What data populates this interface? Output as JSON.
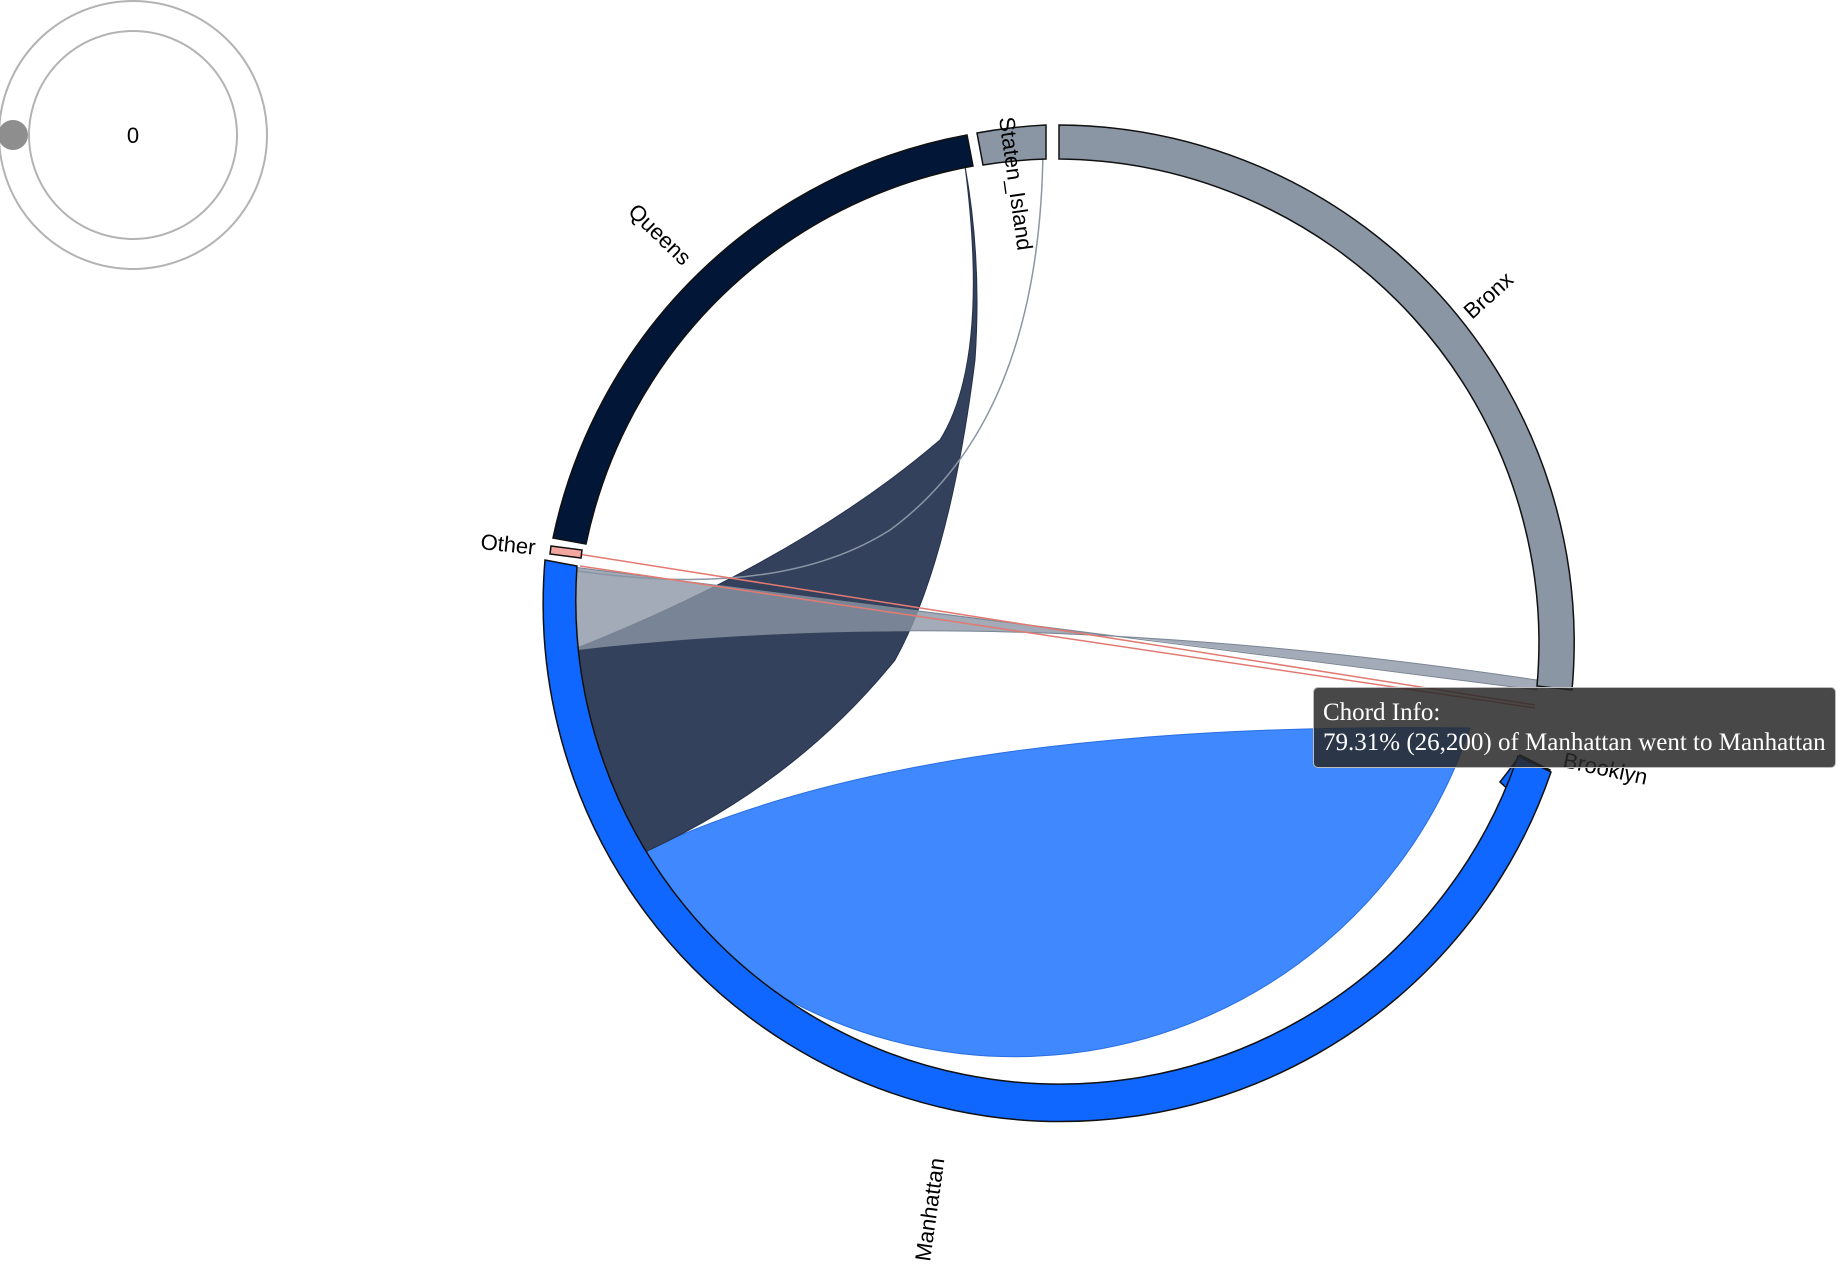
{
  "dial": {
    "value": "0"
  },
  "tooltip": {
    "title": "Chord Info:",
    "text": "79.31% (26,200) of Manhattan went to Manhattan"
  },
  "chart_data": {
    "type": "chord",
    "groups": [
      {
        "name": "Bronx",
        "color": "#8b96a5"
      },
      {
        "name": "Brooklyn",
        "color": "#0f67ff"
      },
      {
        "name": "Manhattan",
        "color": "#0f67ff"
      },
      {
        "name": "Other",
        "color": "#f4a6a0"
      },
      {
        "name": "Queens",
        "color": "#021638"
      },
      {
        "name": "Staten_Island",
        "color": "#8b96a5"
      }
    ],
    "highlighted_chord": {
      "source": "Manhattan",
      "target": "Manhattan",
      "share_percent": 79.31,
      "value": 26200
    }
  }
}
